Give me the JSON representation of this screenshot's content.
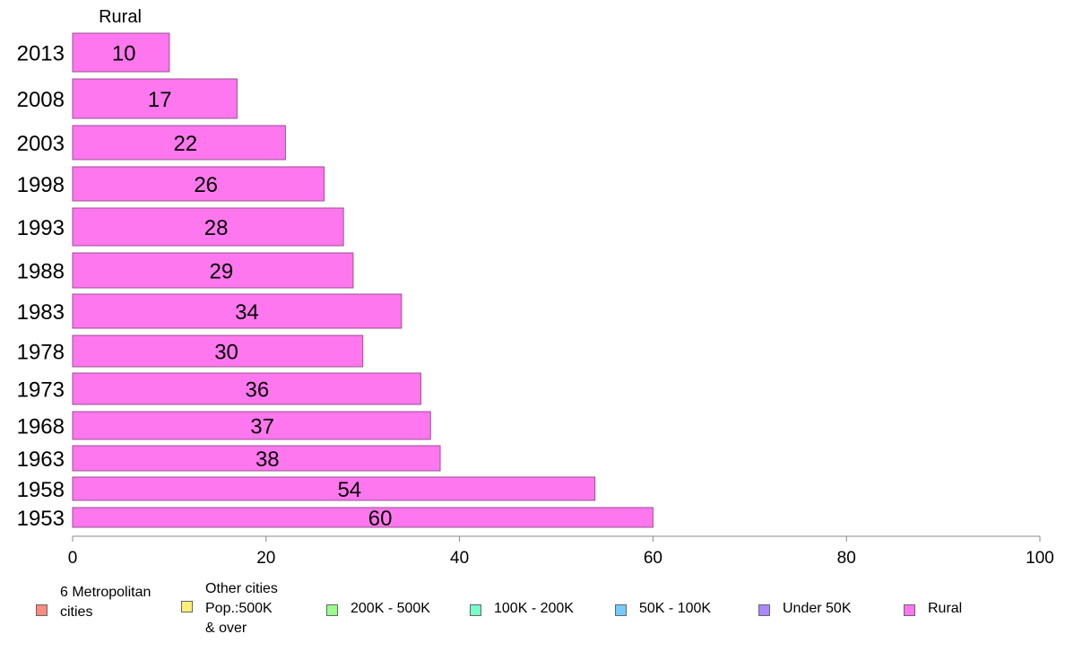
{
  "chart_data": {
    "type": "bar",
    "orientation": "horizontal",
    "title": "Rural",
    "categories": [
      "2013",
      "2008",
      "2003",
      "1998",
      "1993",
      "1988",
      "1983",
      "1978",
      "1973",
      "1968",
      "1963",
      "1958",
      "1953"
    ],
    "values": [
      10,
      17,
      22,
      26,
      28,
      29,
      34,
      30,
      36,
      37,
      38,
      54,
      60
    ],
    "value_labels": [
      "10",
      "17",
      "22",
      "26",
      "28",
      "29",
      "34",
      "30",
      "36",
      "37",
      "38",
      "54",
      "60"
    ],
    "xlim": [
      0,
      100
    ],
    "xticks": [
      "0",
      "20",
      "40",
      "60",
      "80",
      "100"
    ],
    "grid": false,
    "bar_color": "#ff77ee",
    "legend_position": "bottom",
    "legend": [
      {
        "label": "6 Metropolitan\n cities",
        "color": "#ff8a80"
      },
      {
        "label": "Other cities\nPop.:500K\n & over",
        "color": "#ffee77"
      },
      {
        "label": "200K - 500K",
        "color": "#99ff88"
      },
      {
        "label": "100K - 200K",
        "color": "#77ffcc"
      },
      {
        "label": "50K - 100K",
        "color": "#77ccff"
      },
      {
        "label": "Under 50K",
        "color": "#aa88ff"
      },
      {
        "label": "Rural",
        "color": "#ff77ee"
      }
    ]
  }
}
